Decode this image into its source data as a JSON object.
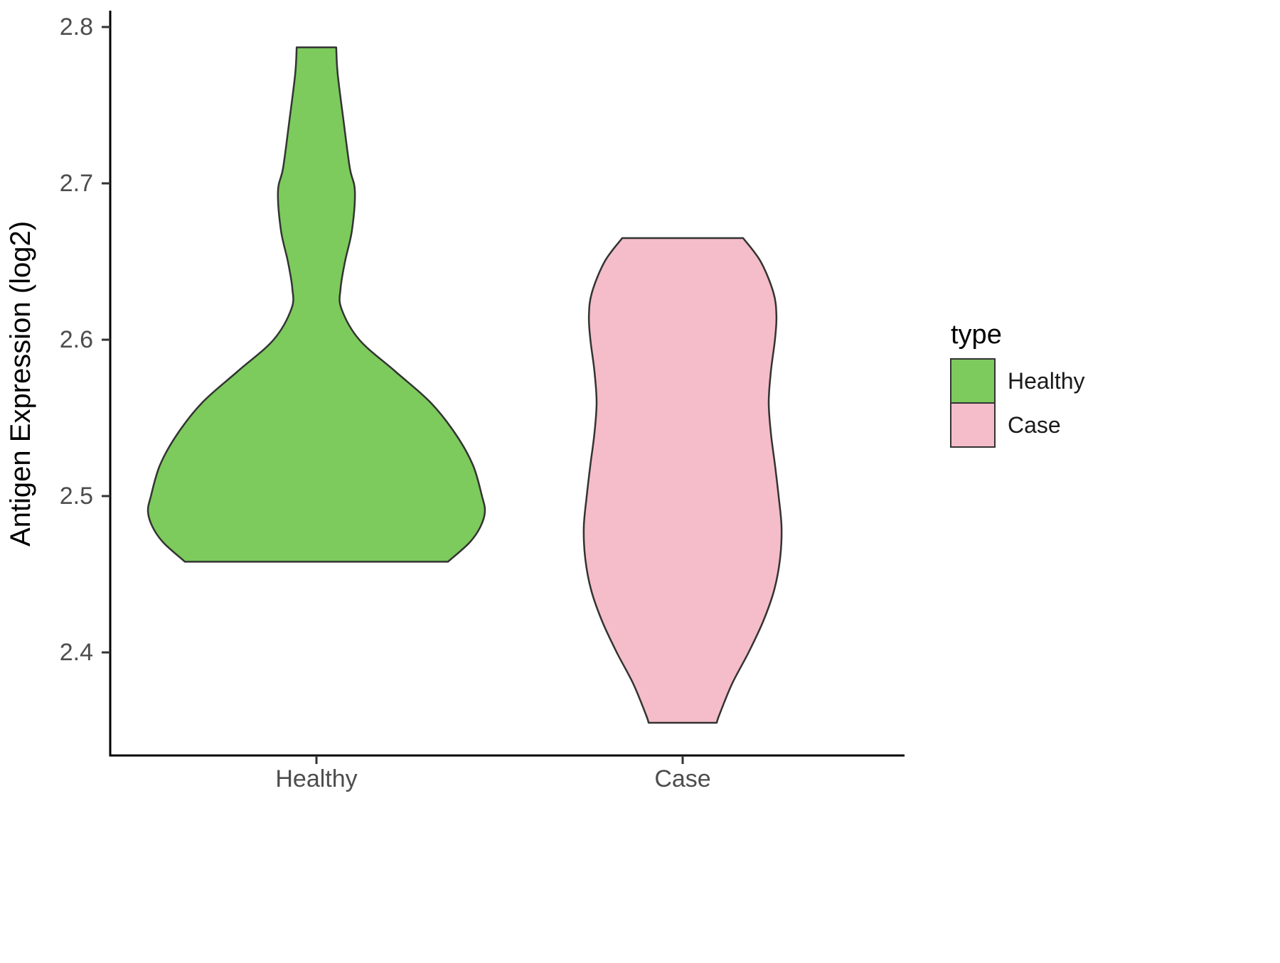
{
  "figure": {
    "background": "#FFFFFF"
  },
  "axes": {
    "y_title": "Antigen Expression (log2)",
    "y_tick_labels": [
      "2.4",
      "2.5",
      "2.6",
      "2.7",
      "2.8"
    ],
    "x_tick_labels": [
      "Healthy",
      "Case"
    ]
  },
  "legend": {
    "title": "type",
    "entries": [
      {
        "label": "Healthy",
        "color": "#7CCB5C"
      },
      {
        "label": "Case",
        "color": "#F5BDC9"
      }
    ]
  },
  "chart_data": {
    "type": "violin",
    "title": "",
    "xlabel": "",
    "ylabel": "Antigen Expression (log2)",
    "ylim": [
      2.334,
      2.811
    ],
    "y_ticks": [
      2.4,
      2.5,
      2.6,
      2.7,
      2.8
    ],
    "grid": false,
    "legend_position": "right",
    "legend_title": "type",
    "categories": [
      "Healthy",
      "Case"
    ],
    "series": [
      {
        "name": "Healthy",
        "fill": "#7CCB5C",
        "stroke": "#333333",
        "trim_range": [
          2.458,
          2.787
        ],
        "profile_value_halfwidth": [
          [
            2.787,
            0.054
          ],
          [
            2.77,
            0.058
          ],
          [
            2.74,
            0.074
          ],
          [
            2.71,
            0.091
          ],
          [
            2.695,
            0.105
          ],
          [
            2.67,
            0.097
          ],
          [
            2.65,
            0.078
          ],
          [
            2.633,
            0.066
          ],
          [
            2.62,
            0.068
          ],
          [
            2.6,
            0.117
          ],
          [
            2.58,
            0.214
          ],
          [
            2.56,
            0.311
          ],
          [
            2.54,
            0.379
          ],
          [
            2.52,
            0.427
          ],
          [
            2.5,
            0.452
          ],
          [
            2.49,
            0.46
          ],
          [
            2.48,
            0.447
          ],
          [
            2.47,
            0.417
          ],
          [
            2.458,
            0.359
          ]
        ]
      },
      {
        "name": "Case",
        "fill": "#F5BDC9",
        "stroke": "#333333",
        "trim_range": [
          2.355,
          2.665
        ],
        "profile_value_halfwidth": [
          [
            2.665,
            0.165
          ],
          [
            2.65,
            0.213
          ],
          [
            2.63,
            0.248
          ],
          [
            2.615,
            0.256
          ],
          [
            2.6,
            0.252
          ],
          [
            2.58,
            0.241
          ],
          [
            2.56,
            0.235
          ],
          [
            2.54,
            0.241
          ],
          [
            2.52,
            0.252
          ],
          [
            2.5,
            0.262
          ],
          [
            2.48,
            0.27
          ],
          [
            2.46,
            0.266
          ],
          [
            2.44,
            0.25
          ],
          [
            2.42,
            0.22
          ],
          [
            2.4,
            0.18
          ],
          [
            2.38,
            0.135
          ],
          [
            2.36,
            0.1
          ],
          [
            2.355,
            0.093
          ]
        ]
      }
    ]
  }
}
